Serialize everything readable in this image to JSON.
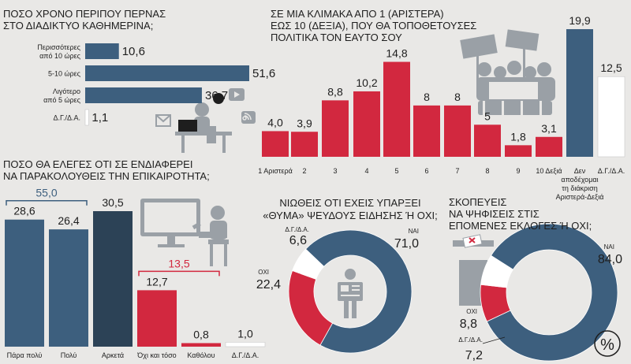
{
  "colors": {
    "blue": "#3d5f7e",
    "red": "#d2283f",
    "white": "#ffffff",
    "ink": "#1e1e1e",
    "bg": "#e9e8e6",
    "illus": "#9aa0a6"
  },
  "chart_data": [
    {
      "id": "time_online",
      "type": "bar",
      "orientation": "horizontal",
      "title_lines": [
        "ΠΟΣΟ ΧΡΟΝΟ ΠΕΡΙΠΟΥ ΠΕΡΝΑΣ",
        "ΣΤΟ ΔΙΑΔΙΚΤΥΟ ΚΑΘΗΜΕΡΙΝΑ;"
      ],
      "categories": [
        [
          "Περισσότερες",
          "από 10 ώρες"
        ],
        [
          "5-10 ώρες"
        ],
        [
          "Λιγότερο",
          "από 5 ώρες"
        ],
        [
          "Δ.Γ./Δ.Α."
        ]
      ],
      "values": [
        10.6,
        51.6,
        36.7,
        1.1
      ],
      "labels": [
        "10,6",
        "51,6",
        "36,7",
        "1,1"
      ],
      "colors": [
        "#3d5f7e",
        "#3d5f7e",
        "#3d5f7e",
        "#ffffff"
      ],
      "xlim": [
        0,
        51.6
      ]
    },
    {
      "id": "political_scale",
      "type": "bar",
      "title_lines": [
        "ΣΕ ΜΙΑ ΚΛΙΜΑΚΑ ΑΠΟ 1 (ΑΡΙΣΤΕΡΑ)",
        "ΕΩΣ 10 (ΔΕΞΙΑ), ΠΟΥ ΘΑ ΤΟΠΟΘΕΤΟΥΣΕΣ",
        "ΠΟΛΙΤΙΚΑ ΤΟΝ ΕΑΥΤΟ ΣΟΥ"
      ],
      "categories": [
        [
          "1 Αριστερά"
        ],
        [
          "2"
        ],
        [
          "3"
        ],
        [
          "4"
        ],
        [
          "5"
        ],
        [
          "6"
        ],
        [
          "7"
        ],
        [
          "8"
        ],
        [
          "9"
        ],
        [
          "10 Δεξιά"
        ],
        [
          "Δεν",
          "αποδέχομαι",
          "τη διάκριση",
          "Αριστερά-Δεξιά"
        ],
        [
          "Δ.Γ./Δ.Α."
        ]
      ],
      "values": [
        4.0,
        3.9,
        8.8,
        10.2,
        14.8,
        8,
        8,
        5,
        1.8,
        3.1,
        19.9,
        12.5
      ],
      "labels": [
        "4,0",
        "3,9",
        "8,8",
        "10,2",
        "14,8",
        "8",
        "8",
        "5",
        "1,8",
        "3,1",
        "19,9",
        "12,5"
      ],
      "colors": [
        "#d2283f",
        "#d2283f",
        "#d2283f",
        "#d2283f",
        "#d2283f",
        "#d2283f",
        "#d2283f",
        "#d2283f",
        "#d2283f",
        "#d2283f",
        "#3d5f7e",
        "#ffffff"
      ],
      "ylim": [
        0,
        19.9
      ]
    },
    {
      "id": "follow_news",
      "type": "bar",
      "title_lines": [
        "ΠΟΣΟ ΘΑ ΕΛΕΓΕΣ ΟΤΙ ΣΕ ΕΝΔΙΑΦΕΡΕΙ",
        "ΝΑ ΠΑΡΑΚΟΛΟΥΘΕΙΣ ΤΗΝ ΕΠΙΚΑΙΡΟΤΗΤΑ;"
      ],
      "categories": [
        [
          "Πάρα πολύ"
        ],
        [
          "Πολύ"
        ],
        [
          "Αρκετά"
        ],
        [
          "Όχι και τόσο"
        ],
        [
          "Καθόλου"
        ],
        [
          "Δ.Γ./Δ.Α."
        ]
      ],
      "values": [
        28.6,
        26.4,
        30.5,
        12.7,
        0.8,
        1.0
      ],
      "labels": [
        "28,6",
        "26,4",
        "30,5",
        "12,7",
        "0,8",
        "1,0"
      ],
      "colors": [
        "#3d5f7e",
        "#3d5f7e",
        "#2c4256",
        "#d2283f",
        "#d2283f",
        "#ffffff"
      ],
      "ylim": [
        0,
        30.5
      ],
      "group_totals": [
        {
          "label": "55,0",
          "value": 55.0,
          "spans": [
            0,
            1
          ],
          "color": "#3d5f7e"
        },
        {
          "label": "13,5",
          "value": 13.5,
          "spans": [
            3,
            4
          ],
          "color": "#d2283f"
        }
      ]
    },
    {
      "id": "fake_news_victim",
      "type": "pie",
      "donut": true,
      "title_lines": [
        "ΝΙΩΘΕΙΣ ΟΤΙ ΕΧΕΙΣ ΥΠΑΡΞΕΙ",
        "«ΘΥΜΑ» ΨΕΥΔΟΥΣ ΕΙΔΗΣΗΣ Ή ΟΧΙ;"
      ],
      "slices": [
        {
          "name": "ΝΑΙ",
          "value": 71.0,
          "label": "71,0",
          "color": "#3d5f7e"
        },
        {
          "name": "ΟΧΙ",
          "value": 22.4,
          "label": "22,4",
          "color": "#d2283f"
        },
        {
          "name": "Δ.Γ./Δ.Α.",
          "value": 6.6,
          "label": "6,6",
          "color": "#ffffff"
        }
      ]
    },
    {
      "id": "vote_intention",
      "type": "pie",
      "donut": true,
      "title_lines": [
        "ΣΚΟΠΕΥΕΙΣ",
        "ΝΑ ΨΗΦΙΣΕΙΣ ΣΤΙΣ",
        "ΕΠΟΜΕΝΕΣ ΕΚΛΟΓΕΣ Ή ΟΧΙ;"
      ],
      "slices": [
        {
          "name": "ΝΑΙ",
          "value": 84.0,
          "label": "84,0",
          "color": "#3d5f7e"
        },
        {
          "name": "ΟΧΙ",
          "value": 8.8,
          "label": "8,8",
          "color": "#d2283f"
        },
        {
          "name": "Δ.Γ./Δ.Α.",
          "value": 7.2,
          "label": "7,2",
          "color": "#ffffff"
        }
      ]
    }
  ],
  "percent_symbol": "%"
}
